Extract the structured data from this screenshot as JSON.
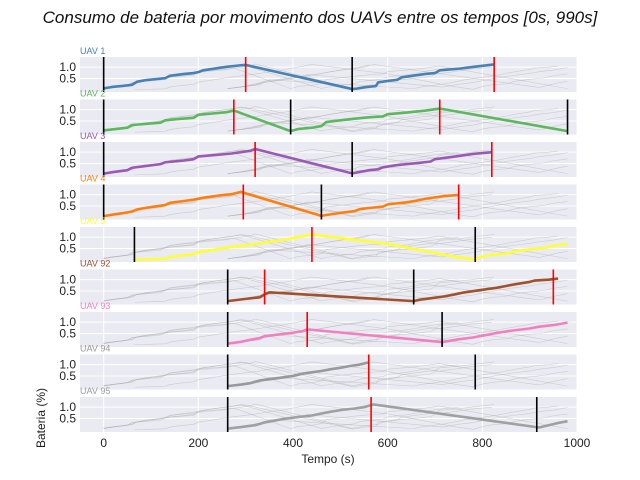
{
  "chart_data": {
    "type": "line",
    "title": "Consumo de bateria por movimento dos UAVs entre os tempos [0s, 990s]",
    "xlabel": "Tempo (s)",
    "ylabel": "Bateria (%)",
    "xlim": [
      -50,
      1000
    ],
    "ylim": [
      -0.1,
      1.45
    ],
    "xticks": [
      0,
      200,
      400,
      600,
      800,
      1000
    ],
    "yticks": [
      0.5,
      1.0
    ],
    "ytick_labels": [
      "0.5",
      "1.0"
    ],
    "grid": true,
    "background": "#eaeaf2",
    "panels": [
      {
        "label": "UAV 1",
        "color": "#4682b4",
        "x": [
          0,
          20,
          40,
          60,
          70,
          90,
          110,
          130,
          140,
          170,
          190,
          200,
          210,
          230,
          245,
          262,
          288,
          300,
          525,
          535,
          555,
          575,
          580,
          600,
          620,
          630,
          650,
          680,
          700,
          710,
          750,
          780,
          825
        ],
        "y": [
          0.06,
          0.13,
          0.17,
          0.22,
          0.35,
          0.43,
          0.47,
          0.51,
          0.62,
          0.7,
          0.74,
          0.78,
          0.86,
          0.92,
          0.97,
          1.02,
          1.08,
          1.1,
          0.03,
          0.05,
          0.12,
          0.16,
          0.33,
          0.39,
          0.44,
          0.55,
          0.61,
          0.7,
          0.74,
          0.86,
          0.93,
          1.01,
          1.12
        ],
        "black_lines": [
          0,
          525
        ],
        "red_lines": [
          300,
          825
        ]
      },
      {
        "label": "UAV 2",
        "color": "#5cb85c",
        "x": [
          0,
          20,
          50,
          60,
          90,
          120,
          130,
          160,
          190,
          200,
          230,
          260,
          275,
          395,
          410,
          440,
          460,
          470,
          500,
          530,
          560,
          590,
          600,
          640,
          680,
          710,
          980
        ],
        "y": [
          0.08,
          0.13,
          0.2,
          0.32,
          0.37,
          0.42,
          0.53,
          0.59,
          0.64,
          0.77,
          0.83,
          0.89,
          0.96,
          0.05,
          0.14,
          0.2,
          0.27,
          0.45,
          0.53,
          0.6,
          0.66,
          0.7,
          0.8,
          0.87,
          0.96,
          1.05,
          0.05
        ],
        "black_lines": [
          0,
          395,
          980
        ],
        "red_lines": [
          275,
          710
        ]
      },
      {
        "label": "UAV 3",
        "color": "#9b59b6",
        "x": [
          0,
          20,
          50,
          60,
          90,
          120,
          130,
          170,
          190,
          200,
          240,
          270,
          310,
          320,
          525,
          540,
          560,
          580,
          590,
          620,
          660,
          690,
          700,
          740,
          780,
          820
        ],
        "y": [
          0.05,
          0.12,
          0.2,
          0.31,
          0.39,
          0.47,
          0.55,
          0.63,
          0.69,
          0.81,
          0.88,
          0.94,
          1.06,
          1.14,
          0.06,
          0.12,
          0.2,
          0.24,
          0.33,
          0.43,
          0.51,
          0.58,
          0.69,
          0.8,
          0.92,
          1.0
        ],
        "black_lines": [
          0,
          525
        ],
        "red_lines": [
          320,
          820
        ]
      },
      {
        "label": "UAV 4",
        "color": "#ff7f0e",
        "x": [
          0,
          20,
          40,
          60,
          70,
          90,
          110,
          130,
          140,
          170,
          190,
          210,
          230,
          250,
          270,
          290,
          460,
          470,
          490,
          510,
          530,
          540,
          560,
          590,
          600,
          640,
          660,
          680,
          700,
          720,
          750
        ],
        "y": [
          0.05,
          0.12,
          0.18,
          0.25,
          0.34,
          0.42,
          0.48,
          0.54,
          0.64,
          0.72,
          0.78,
          0.86,
          0.92,
          0.98,
          1.02,
          1.12,
          0.06,
          0.1,
          0.16,
          0.22,
          0.27,
          0.35,
          0.41,
          0.47,
          0.57,
          0.66,
          0.73,
          0.82,
          0.88,
          0.94,
          0.99
        ],
        "black_lines": [
          0,
          460
        ],
        "red_lines": [
          295,
          750
        ]
      },
      {
        "label": "UAV 5",
        "color": "#ffff33",
        "x": [
          65,
          130,
          140,
          160,
          190,
          200,
          230,
          250,
          270,
          300,
          330,
          350,
          380,
          440,
          600,
          660,
          700,
          740,
          780,
          790,
          800,
          820,
          850,
          870,
          900,
          930,
          950,
          980
        ],
        "y": [
          0.0,
          0.04,
          0.12,
          0.18,
          0.24,
          0.34,
          0.43,
          0.5,
          0.56,
          0.64,
          0.72,
          0.8,
          0.88,
          1.12,
          0.7,
          0.46,
          0.3,
          0.14,
          0.02,
          0.08,
          0.14,
          0.22,
          0.26,
          0.38,
          0.46,
          0.52,
          0.62,
          0.7
        ],
        "black_lines": [
          65,
          785
        ],
        "red_lines": [
          440
        ]
      },
      {
        "label": "UAV 92",
        "color": "#a0522d",
        "x": [
          262,
          300,
          330,
          340,
          350,
          655,
          670,
          700,
          720,
          740,
          760,
          780,
          800,
          830,
          850,
          870,
          900,
          910,
          940,
          960
        ],
        "y": [
          0.05,
          0.15,
          0.22,
          0.35,
          0.44,
          0.05,
          0.12,
          0.2,
          0.26,
          0.34,
          0.43,
          0.49,
          0.55,
          0.64,
          0.72,
          0.8,
          0.9,
          0.96,
          1.0,
          1.05
        ],
        "black_lines": [
          262,
          655
        ],
        "red_lines": [
          340,
          950
        ]
      },
      {
        "label": "UAV 93",
        "color": "#f080c0",
        "x": [
          262,
          290,
          310,
          330,
          340,
          370,
          400,
          420,
          430,
          715,
          750,
          780,
          800,
          830,
          860,
          900,
          920,
          950,
          980
        ],
        "y": [
          0.05,
          0.13,
          0.22,
          0.3,
          0.38,
          0.46,
          0.53,
          0.6,
          0.68,
          0.12,
          0.24,
          0.32,
          0.4,
          0.52,
          0.62,
          0.72,
          0.8,
          0.87,
          0.98
        ],
        "black_lines": [
          262,
          715
        ],
        "red_lines": [
          430
        ]
      },
      {
        "label": "UAV 94",
        "color": "#999999",
        "x": [
          262,
          290,
          310,
          330,
          360,
          380,
          400,
          420,
          440,
          460,
          480,
          500,
          520,
          540,
          560
        ],
        "y": [
          0.05,
          0.12,
          0.18,
          0.3,
          0.38,
          0.44,
          0.5,
          0.6,
          0.66,
          0.72,
          0.8,
          0.86,
          0.94,
          1.0,
          1.1
        ],
        "black_lines": [
          262,
          785
        ],
        "red_lines": [
          560
        ]
      },
      {
        "label": "UAV 95",
        "color": "#a0a0a0",
        "x": [
          262,
          290,
          320,
          340,
          360,
          380,
          410,
          440,
          460,
          480,
          500,
          530,
          550,
          570,
          920,
          940,
          960,
          980
        ],
        "y": [
          0.05,
          0.12,
          0.2,
          0.32,
          0.4,
          0.48,
          0.56,
          0.63,
          0.72,
          0.8,
          0.87,
          0.94,
          1.0,
          1.12,
          0.1,
          0.2,
          0.3,
          0.38
        ],
        "black_lines": [
          262,
          915
        ],
        "red_lines": [
          565
        ]
      }
    ]
  }
}
